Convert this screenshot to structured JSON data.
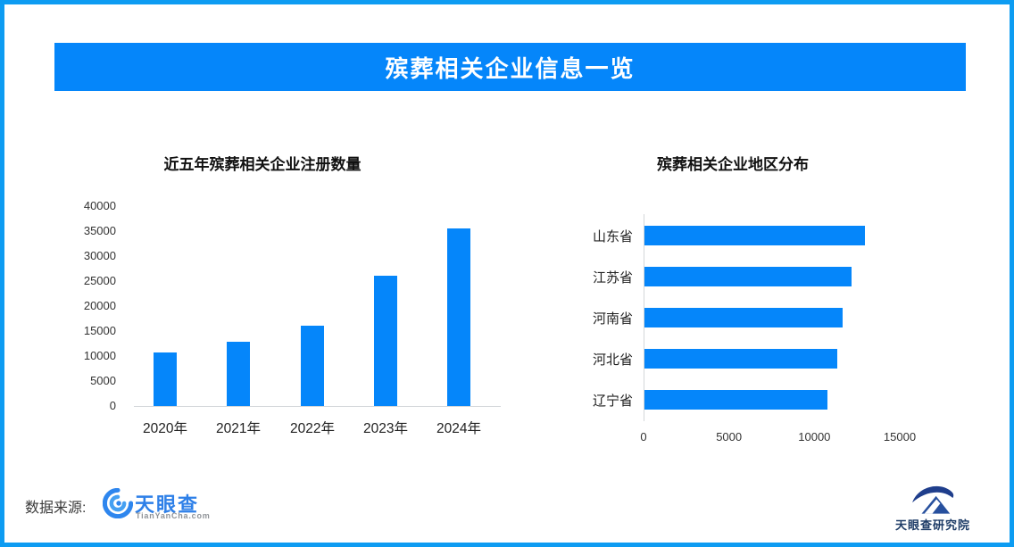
{
  "banner": {
    "title": "殡葬相关企业信息一览"
  },
  "chart_data": [
    {
      "type": "bar",
      "orientation": "vertical",
      "title": "近五年殡葬相关企业注册数量",
      "categories": [
        "2020年",
        "2021年",
        "2022年",
        "2023年",
        "2024年"
      ],
      "values": [
        10700,
        12800,
        16000,
        26000,
        35600
      ],
      "xlabel": "",
      "ylabel": "",
      "ylim": [
        0,
        40000
      ],
      "yticks": [
        0,
        5000,
        10000,
        15000,
        20000,
        25000,
        30000,
        35000,
        40000
      ],
      "grid": false,
      "legend": false
    },
    {
      "type": "bar",
      "orientation": "horizontal",
      "title": "殡葬相关企业地区分布",
      "categories": [
        "山东省",
        "江苏省",
        "河南省",
        "河北省",
        "辽宁省"
      ],
      "values": [
        12900,
        12100,
        11600,
        11300,
        10700
      ],
      "xlabel": "",
      "ylabel": "",
      "xlim": [
        0,
        15000
      ],
      "xticks": [
        0,
        5000,
        10000,
        15000
      ],
      "grid": false,
      "legend": false
    }
  ],
  "footer": {
    "source_label": "数据来源:",
    "brand_name": "天眼查",
    "brand_domain": "TianYanCha.com",
    "research_name": "天眼查研究院"
  },
  "icons": {
    "tianyancha_logo": "swirl-eye-icon",
    "research_institute": "arc-over-mountain-icon"
  },
  "colors": {
    "bar": "#0586fa",
    "banner_bg": "#0586fa",
    "page_border": "#0d9cf2",
    "brand_blue": "#2e80e8",
    "brand_light_blue": "#45a0f2",
    "research_navy": "#1d3b66",
    "axis_line": "#d4d7da",
    "tick_text": "#333333",
    "category_text": "#222222"
  }
}
